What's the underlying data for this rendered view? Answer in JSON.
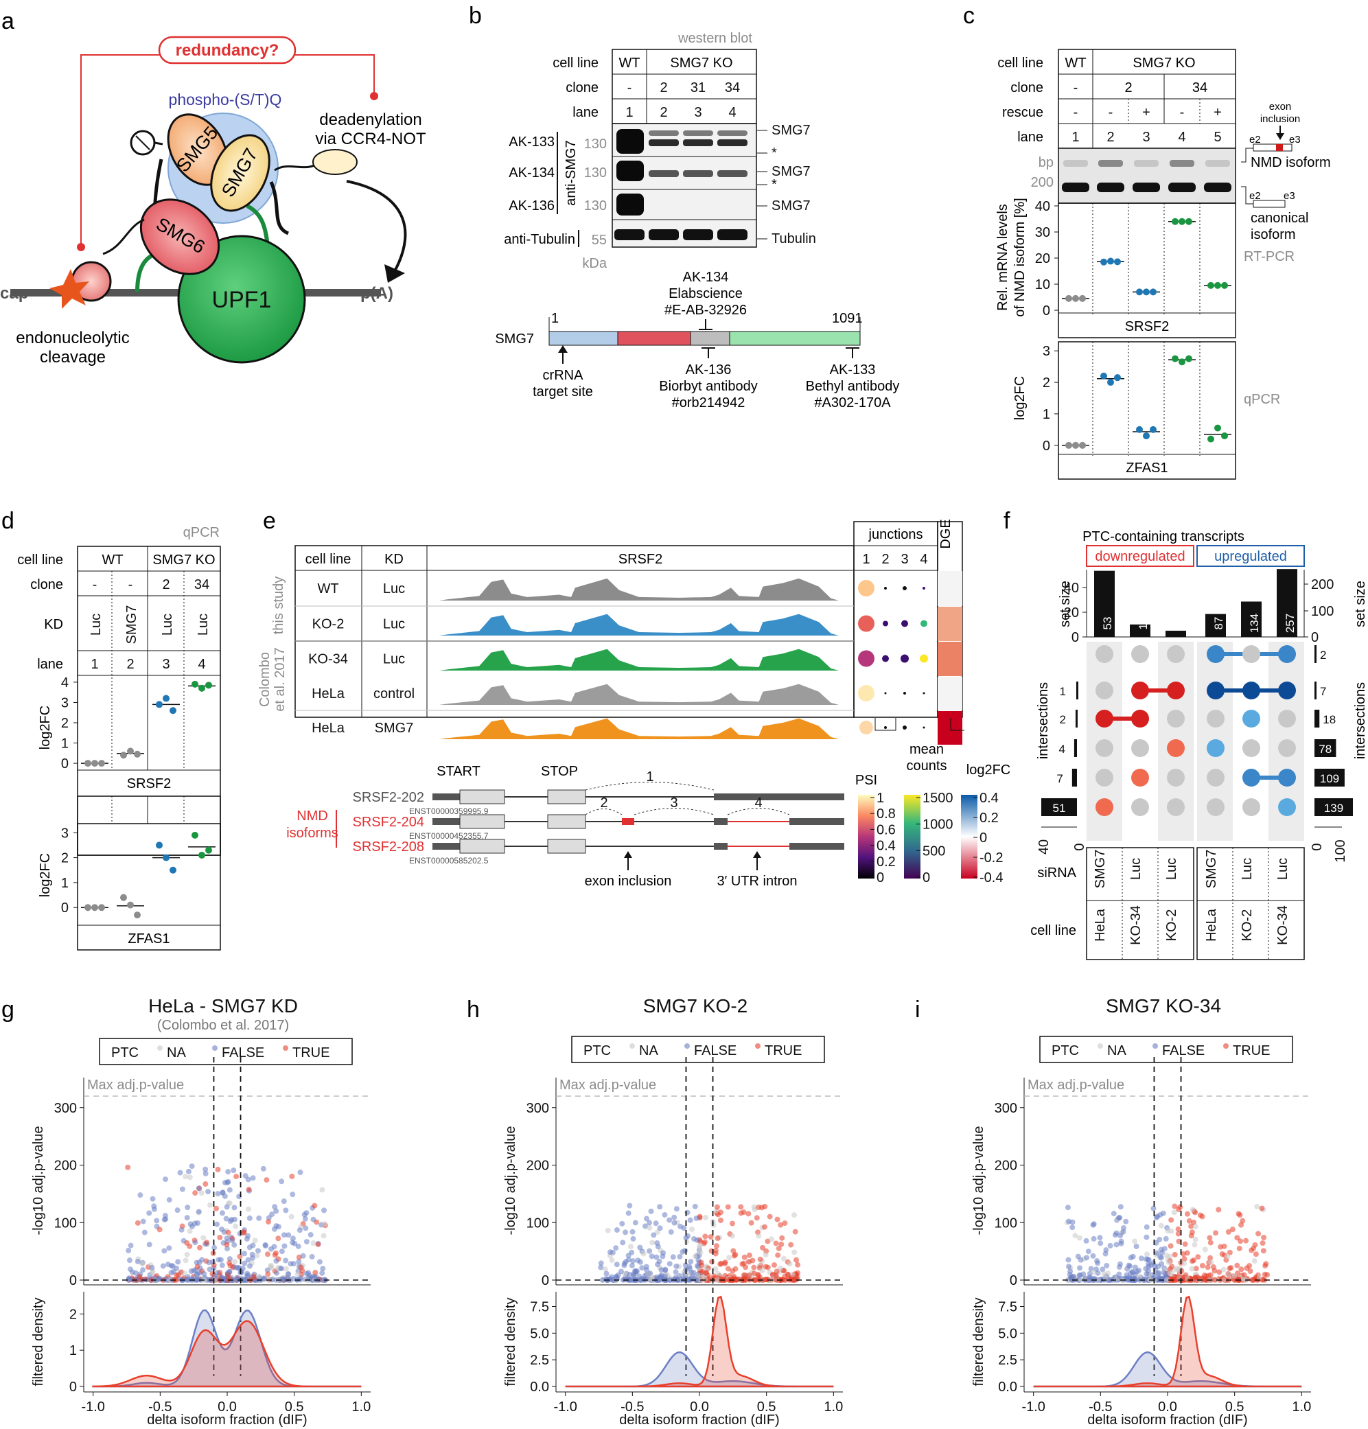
{
  "panel_labels": [
    "a",
    "b",
    "c",
    "d",
    "e",
    "f",
    "g",
    "h",
    "i"
  ],
  "panel_a": {
    "redundancy": "redundancy?",
    "phospho": "phospho-(S/T)Q",
    "deadenylation": [
      "deadenylation",
      "via CCR4-NOT"
    ],
    "cap": "cap",
    "polyA": "p(A)",
    "smg5": "SMG5",
    "smg7": "SMG7",
    "smg6": "SMG6",
    "upf1": "UPF1",
    "cleavage": [
      "endonucleolytic",
      "cleavage"
    ]
  },
  "panel_b": {
    "western": "western blot",
    "row_labels": [
      "cell line",
      "clone",
      "lane"
    ],
    "wt": "WT",
    "ko": "SMG7 KO",
    "clones": [
      "-",
      "2",
      "31",
      "34"
    ],
    "lanes": [
      "1",
      "2",
      "3",
      "4"
    ],
    "antibodies": [
      "AK-133",
      "AK-134",
      "AK-136"
    ],
    "anti_smg7": "anti-SMG7",
    "anti_tubulin": "anti-Tubulin",
    "mw": [
      "130",
      "130",
      "130",
      "55"
    ],
    "kda": "kDa",
    "bands": [
      "SMG7",
      "*",
      "SMG7",
      "*",
      "SMG7",
      "Tubulin"
    ],
    "protein": "SMG7",
    "aa_start": "1",
    "aa_end": "1091",
    "ab134": [
      "AK-134",
      "Elabscience",
      "#E-AB-32926"
    ],
    "crrna": [
      "crRNA",
      "target site"
    ],
    "ab136": [
      "AK-136",
      "Biorbyt antibody",
      "#orb214942"
    ],
    "ab133": [
      "AK-133",
      "Bethyl antibody",
      "#A302-170A"
    ]
  },
  "panel_c": {
    "row_labels": [
      "cell line",
      "clone",
      "rescue",
      "lane"
    ],
    "wt": "WT",
    "ko": "SMG7 KO",
    "clones": [
      "-",
      "2",
      "34"
    ],
    "rescue": [
      "-",
      "-",
      "+",
      "-",
      "+"
    ],
    "lanes": [
      "1",
      "2",
      "3",
      "4",
      "5"
    ],
    "bp": "bp",
    "bp200": "200",
    "exon_inclusion": [
      "exon",
      "inclusion"
    ],
    "e2": "e2",
    "e3": "e3",
    "nmd_isoform": "NMD isoform",
    "canonical": [
      "canonical",
      "isoform"
    ],
    "rtpcr": "RT-PCR",
    "qpcr": "qPCR",
    "srsf2": "SRSF2",
    "zfas1": "ZFAS1",
    "ylabel_top": [
      "Rel. mRNA levels",
      "of NMD isoform [%]"
    ],
    "ylabel_bottom": "log2FC",
    "chart_data": [
      {
        "type": "scatter",
        "title": "SRSF2",
        "ylabel": "Rel. mRNA levels of NMD isoform [%]",
        "ylim": [
          0,
          40
        ],
        "categories": [
          "1",
          "2",
          "3",
          "4",
          "5"
        ],
        "values": [
          [
            4.5,
            4.5,
            4.5
          ],
          [
            18.5,
            18.8,
            18.6
          ],
          [
            7,
            7,
            7
          ],
          [
            34,
            34,
            34
          ],
          [
            9.5,
            9.5,
            9.5
          ]
        ]
      },
      {
        "type": "scatter",
        "title": "ZFAS1",
        "ylabel": "log2FC",
        "ylim": [
          -0.2,
          3.2
        ],
        "categories": [
          "1",
          "2",
          "3",
          "4",
          "5"
        ],
        "values": [
          [
            0,
            0,
            0
          ],
          [
            2.2,
            2.0,
            2.15
          ],
          [
            0.5,
            0.3,
            0.5
          ],
          [
            2.75,
            2.65,
            2.75
          ],
          [
            0.2,
            0.55,
            0.3
          ]
        ]
      }
    ]
  },
  "panel_d": {
    "qpcr": "qPCR",
    "row_labels": [
      "cell line",
      "clone",
      "KD",
      "lane"
    ],
    "wt": "WT",
    "ko": "SMG7 KO",
    "clones": [
      "-",
      "-",
      "2",
      "34"
    ],
    "kd": [
      "Luc",
      "SMG7",
      "Luc",
      "Luc"
    ],
    "lanes": [
      "1",
      "2",
      "3",
      "4"
    ],
    "ylabel": "log2FC",
    "srsf2": "SRSF2",
    "zfas1": "ZFAS1",
    "chart_data": [
      {
        "type": "scatter",
        "title": "SRSF2",
        "ylabel": "log2FC",
        "ylim": [
          -0.2,
          4.2
        ],
        "categories": [
          "1",
          "2",
          "3",
          "4"
        ],
        "values": [
          [
            0,
            0,
            0
          ],
          [
            0.4,
            0.6,
            0.45
          ],
          [
            2.9,
            3.2,
            2.6
          ],
          [
            3.9,
            3.7,
            3.85
          ]
        ]
      },
      {
        "type": "scatter",
        "title": "ZFAS1",
        "ylabel": "log2FC",
        "ylim": [
          -0.6,
          3.2
        ],
        "categories": [
          "1",
          "2",
          "3",
          "4"
        ],
        "values": [
          [
            0,
            0,
            0
          ],
          [
            0.4,
            0.1,
            -0.3
          ],
          [
            2.5,
            2.0,
            1.5
          ],
          [
            2.9,
            2.1,
            2.3
          ]
        ]
      }
    ]
  },
  "panel_e": {
    "headers": [
      "cell line",
      "KD",
      "SRSF2"
    ],
    "junctions": "junctions",
    "dge": "DGE",
    "junction_ids": [
      "1",
      "2",
      "3",
      "4"
    ],
    "this_study": "this study",
    "colombo": [
      "Colombo",
      "et al. 2017"
    ],
    "rows": [
      {
        "line": "WT",
        "kd": "Luc",
        "color": "#8c8c8c"
      },
      {
        "line": "KO-2",
        "kd": "Luc",
        "color": "#3a8fc8"
      },
      {
        "line": "KO-34",
        "kd": "Luc",
        "color": "#27a34c"
      },
      {
        "line": "HeLa",
        "kd": "control",
        "color": "#9c9c9c"
      },
      {
        "line": "HeLa",
        "kd": "SMG7",
        "color": "#f0921e"
      }
    ],
    "start": "START",
    "stop": "STOP",
    "nmd": [
      "NMD",
      "isoforms"
    ],
    "transcripts": [
      {
        "name": "SRSF2-202",
        "id": "ENST00000359995.9"
      },
      {
        "name": "SRSF2-204",
        "id": "ENST00000452355.7"
      },
      {
        "name": "SRSF2-208",
        "id": "ENST00000585202.5"
      }
    ],
    "exon_inclusion": "exon inclusion",
    "utr_intron": "3′ UTR intron",
    "psi": "PSI",
    "psi_ticks": [
      "1",
      "0.8",
      "0.6",
      "0.4",
      "0.2",
      "0"
    ],
    "mean": [
      "mean",
      "counts"
    ],
    "mean_ticks": [
      "1500",
      "1000",
      "500",
      "0"
    ],
    "lfc": "log2FC",
    "lfc_ticks": [
      "0.4",
      "0.2",
      "0",
      "-0.2",
      "-0.4"
    ]
  },
  "panel_f": {
    "title": "PTC-containing transcripts",
    "down": "downregulated",
    "up": "upregulated",
    "set_size": "set size",
    "intersections": "intersections",
    "siRNA": "siRNA",
    "cell_line": "cell line",
    "columns": [
      {
        "sirna": "SMG7",
        "line": "HeLa",
        "size": 53
      },
      {
        "sirna": "Luc",
        "line": "KO-34",
        "size": 10
      },
      {
        "sirna": "Luc",
        "line": "KO-2",
        "size": 5
      },
      {
        "sirna": "SMG7",
        "line": "HeLa",
        "size": 87
      },
      {
        "sirna": "Luc",
        "line": "KO-2",
        "size": 134
      },
      {
        "sirna": "Luc",
        "line": "KO-34",
        "size": 257
      }
    ],
    "left_ticks": [
      "40",
      "20",
      "0"
    ],
    "right_ticks": [
      "200",
      "100",
      "0"
    ],
    "left_bars": [
      {
        "label": "1",
        "v": 1
      },
      {
        "label": "2",
        "v": 2
      },
      {
        "label": "4",
        "v": 4
      },
      {
        "label": "7",
        "v": 7
      },
      {
        "label": "51",
        "v": 51
      }
    ],
    "right_bars": [
      {
        "label": "2",
        "v": 2
      },
      {
        "label": "7",
        "v": 7
      },
      {
        "label": "18",
        "v": 18
      },
      {
        "label": "78",
        "v": 78
      },
      {
        "label": "109",
        "v": 109
      },
      {
        "label": "139",
        "v": 139
      }
    ],
    "lbar_ticks": [
      "40",
      "0"
    ],
    "rbar_ticks": [
      "0",
      "100"
    ]
  },
  "volcano": {
    "legend": [
      "PTC",
      "NA",
      "FALSE",
      "TRUE"
    ],
    "max_label": "Max adj.p-value",
    "ylabel": "-log10 adj.p-value",
    "ylabel2": "filtered density",
    "xlabel": "delta isoform fraction (dIF)",
    "yticks": [
      "300",
      "200",
      "100",
      "0"
    ],
    "xticks": [
      "-1.0",
      "-0.5",
      "0.0",
      "0.5",
      "1.0"
    ],
    "panels": [
      {
        "title": "HeLa - SMG7 KD",
        "subtitle": "(Colombo et al. 2017)",
        "dticks": [
          "2",
          "1",
          "0"
        ]
      },
      {
        "title": "SMG7 KO-2",
        "subtitle": "",
        "dticks": [
          "7.5",
          "5.0",
          "2.5",
          "0.0"
        ]
      },
      {
        "title": "SMG7 KO-34",
        "subtitle": "",
        "dticks": [
          "7.5",
          "5.0",
          "2.5",
          "0.0"
        ]
      }
    ],
    "colors": {
      "na": "#c8c8c8",
      "false": "#6c7fc4",
      "true": "#e8402c"
    }
  }
}
